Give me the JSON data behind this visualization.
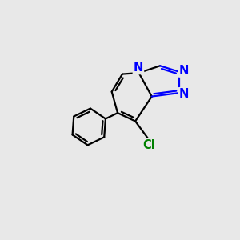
{
  "background_color": "#e8e8e8",
  "bond_color": "#000000",
  "nitrogen_color": "#0000ff",
  "chlorine_color": "#008000",
  "bond_width": 1.6,
  "font_size_atom": 10.5,
  "figsize": [
    3.0,
    3.0
  ],
  "dpi": 100,
  "xlim": [
    0,
    10
  ],
  "ylim": [
    0,
    10
  ]
}
